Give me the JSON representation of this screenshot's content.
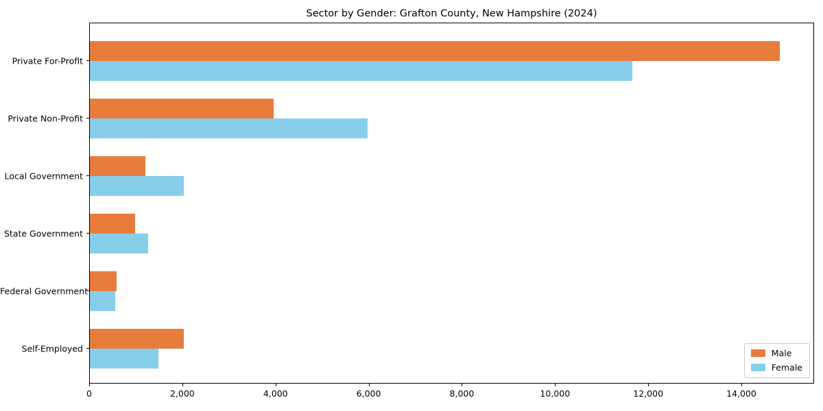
{
  "figure": {
    "background": "#ffffff",
    "axis_color": "#000000",
    "legend_border_color": "#cccccc"
  },
  "chart_data": {
    "type": "bar",
    "orientation": "horizontal",
    "title": "Sector by Gender: Grafton County, New Hampshire (2024)",
    "categories": [
      "Private For-Profit",
      "Private Non-Profit",
      "Local Government",
      "State Government",
      "Federal Government",
      "Self-Employed"
    ],
    "series": [
      {
        "name": "Male",
        "color": "#E87C3D",
        "values": [
          14810,
          3950,
          1190,
          970,
          575,
          2010
        ]
      },
      {
        "name": "Female",
        "color": "#87CEEB",
        "values": [
          11640,
          5960,
          2010,
          1250,
          540,
          1470
        ]
      }
    ],
    "xlabel": "",
    "ylabel": "",
    "xlim": [
      0,
      15560
    ],
    "x_ticks": [
      0,
      2000,
      4000,
      6000,
      8000,
      10000,
      12000,
      14000
    ],
    "x_tick_labels": [
      "0",
      "2,000",
      "4,000",
      "6,000",
      "8,000",
      "10,000",
      "12,000",
      "14,000"
    ],
    "legend_position": "lower right",
    "grid": false
  }
}
